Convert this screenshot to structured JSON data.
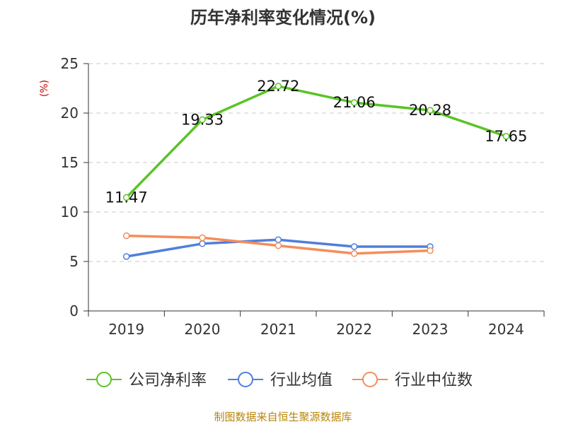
{
  "chart_data": {
    "type": "line",
    "title": "历年净利率变化情况(%)",
    "ylabel": "(%)",
    "categories": [
      "2019",
      "2020",
      "2021",
      "2022",
      "2023",
      "2024"
    ],
    "ylim": [
      0,
      25
    ],
    "yticks": [
      0,
      5,
      10,
      15,
      20,
      25
    ],
    "grid": true,
    "legend_position": "bottom",
    "series": [
      {
        "name": "公司净利率",
        "color": "#5ac427",
        "values": [
          11.47,
          19.33,
          22.72,
          21.06,
          20.28,
          17.65
        ],
        "labels": [
          "11.47",
          "19.33",
          "22.72",
          "21.06",
          "20.28",
          "17.65"
        ]
      },
      {
        "name": "行业均值",
        "color": "#4f7fdb",
        "values": [
          5.5,
          6.8,
          7.2,
          6.5,
          6.5,
          null
        ]
      },
      {
        "name": "行业中位数",
        "color": "#f58d5a",
        "values": [
          7.6,
          7.4,
          6.6,
          5.8,
          6.1,
          null
        ]
      }
    ]
  },
  "footer": {
    "source": "制图数据来自恒生聚源数据库"
  }
}
